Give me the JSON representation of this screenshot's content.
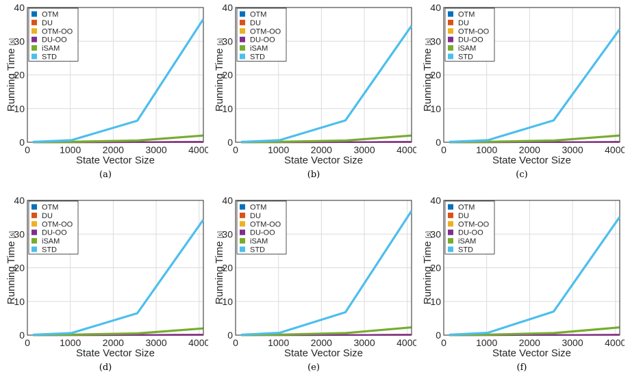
{
  "series_styles": [
    {
      "name": "OTM",
      "color": "#0072BD"
    },
    {
      "name": "DU",
      "color": "#D95319"
    },
    {
      "name": "OTM-OO",
      "color": "#EDB120"
    },
    {
      "name": "DU-OO",
      "color": "#7E2F8E"
    },
    {
      "name": "iSAM",
      "color": "#77AC30"
    },
    {
      "name": "STD",
      "color": "#4DBEEE"
    }
  ],
  "chart_data": [
    {
      "type": "line",
      "caption": "(a)",
      "xlabel": "State Vector Size",
      "ylabel": "Running Time",
      "ylabel_unit": "[s]",
      "xlim": [
        0,
        4100
      ],
      "ylim": [
        0,
        40
      ],
      "xticks": [
        0,
        1000,
        2000,
        3000,
        4000
      ],
      "yticks": [
        0,
        10,
        20,
        30,
        40
      ],
      "grid": true,
      "legend": "top-left",
      "x": [
        128,
        1024,
        2560,
        4096
      ],
      "series": [
        {
          "name": "OTM",
          "values": [
            0,
            0.02,
            0.05,
            0.1
          ]
        },
        {
          "name": "DU",
          "values": [
            0,
            0.02,
            0.05,
            0.1
          ]
        },
        {
          "name": "OTM-OO",
          "values": [
            0,
            0.02,
            0.05,
            0.1
          ]
        },
        {
          "name": "DU-OO",
          "values": [
            0,
            0.02,
            0.05,
            0.1
          ]
        },
        {
          "name": "iSAM",
          "values": [
            0.05,
            0.15,
            0.5,
            2.0
          ]
        },
        {
          "name": "STD",
          "values": [
            0.1,
            0.6,
            6.4,
            36.5
          ]
        }
      ]
    },
    {
      "type": "line",
      "caption": "(b)",
      "xlabel": "State Vector Size",
      "ylabel": "Running Time",
      "ylabel_unit": "[s]",
      "xlim": [
        0,
        4100
      ],
      "ylim": [
        0,
        40
      ],
      "xticks": [
        0,
        1000,
        2000,
        3000,
        4000
      ],
      "yticks": [
        0,
        10,
        20,
        30,
        40
      ],
      "grid": true,
      "legend": "top-left",
      "x": [
        128,
        1024,
        2560,
        4096
      ],
      "series": [
        {
          "name": "OTM",
          "values": [
            0,
            0.02,
            0.05,
            0.1
          ]
        },
        {
          "name": "DU",
          "values": [
            0,
            0.02,
            0.05,
            0.1
          ]
        },
        {
          "name": "OTM-OO",
          "values": [
            0,
            0.02,
            0.05,
            0.1
          ]
        },
        {
          "name": "DU-OO",
          "values": [
            0,
            0.02,
            0.05,
            0.1
          ]
        },
        {
          "name": "iSAM",
          "values": [
            0.05,
            0.15,
            0.5,
            2.0
          ]
        },
        {
          "name": "STD",
          "values": [
            0.1,
            0.6,
            6.5,
            34.5
          ]
        }
      ]
    },
    {
      "type": "line",
      "caption": "(c)",
      "xlabel": "State Vector Size",
      "ylabel": "Running Time",
      "ylabel_unit": "[s]",
      "xlim": [
        0,
        4100
      ],
      "ylim": [
        0,
        40
      ],
      "xticks": [
        0,
        1000,
        2000,
        3000,
        4000
      ],
      "yticks": [
        0,
        10,
        20,
        30,
        40
      ],
      "grid": true,
      "legend": "top-left",
      "x": [
        128,
        1024,
        2560,
        4096
      ],
      "series": [
        {
          "name": "OTM",
          "values": [
            0,
            0.02,
            0.05,
            0.1
          ]
        },
        {
          "name": "DU",
          "values": [
            0,
            0.02,
            0.05,
            0.1
          ]
        },
        {
          "name": "OTM-OO",
          "values": [
            0,
            0.02,
            0.05,
            0.1
          ]
        },
        {
          "name": "DU-OO",
          "values": [
            0,
            0.02,
            0.05,
            0.1
          ]
        },
        {
          "name": "iSAM",
          "values": [
            0.05,
            0.15,
            0.5,
            2.0
          ]
        },
        {
          "name": "STD",
          "values": [
            0.1,
            0.6,
            6.5,
            33.5
          ]
        }
      ]
    },
    {
      "type": "line",
      "caption": "(d)",
      "xlabel": "State Vector Size",
      "ylabel": "Running Time",
      "ylabel_unit": "[s]",
      "xlim": [
        0,
        4100
      ],
      "ylim": [
        0,
        40
      ],
      "xticks": [
        0,
        1000,
        2000,
        3000,
        4000
      ],
      "yticks": [
        0,
        10,
        20,
        30,
        40
      ],
      "grid": true,
      "legend": "top-left",
      "x": [
        128,
        1024,
        2560,
        4096
      ],
      "series": [
        {
          "name": "OTM",
          "values": [
            0,
            0.02,
            0.05,
            0.1
          ]
        },
        {
          "name": "DU",
          "values": [
            0,
            0.02,
            0.05,
            0.1
          ]
        },
        {
          "name": "OTM-OO",
          "values": [
            0,
            0.02,
            0.05,
            0.1
          ]
        },
        {
          "name": "DU-OO",
          "values": [
            0,
            0.02,
            0.05,
            0.1
          ]
        },
        {
          "name": "iSAM",
          "values": [
            0.05,
            0.15,
            0.5,
            2.0
          ]
        },
        {
          "name": "STD",
          "values": [
            0.1,
            0.6,
            6.5,
            34.2
          ]
        }
      ]
    },
    {
      "type": "line",
      "caption": "(e)",
      "xlabel": "State Vector Size",
      "ylabel": "Running Time",
      "ylabel_unit": "[s]",
      "xlim": [
        0,
        4100
      ],
      "ylim": [
        0,
        40
      ],
      "xticks": [
        0,
        1000,
        2000,
        3000,
        4000
      ],
      "yticks": [
        0,
        10,
        20,
        30,
        40
      ],
      "grid": true,
      "legend": "top-left",
      "x": [
        128,
        1024,
        2560,
        4096
      ],
      "series": [
        {
          "name": "OTM",
          "values": [
            0,
            0.02,
            0.05,
            0.1
          ]
        },
        {
          "name": "DU",
          "values": [
            0,
            0.02,
            0.05,
            0.1
          ]
        },
        {
          "name": "OTM-OO",
          "values": [
            0,
            0.02,
            0.05,
            0.1
          ]
        },
        {
          "name": "DU-OO",
          "values": [
            0,
            0.02,
            0.05,
            0.1
          ]
        },
        {
          "name": "iSAM",
          "values": [
            0.05,
            0.15,
            0.6,
            2.3
          ]
        },
        {
          "name": "STD",
          "values": [
            0.1,
            0.7,
            6.8,
            36.8
          ]
        }
      ]
    },
    {
      "type": "line",
      "caption": "(f)",
      "xlabel": "State Vector Size",
      "ylabel": "Running Time",
      "ylabel_unit": "[s]",
      "xlim": [
        0,
        4100
      ],
      "ylim": [
        0,
        40
      ],
      "xticks": [
        0,
        1000,
        2000,
        3000,
        4000
      ],
      "yticks": [
        0,
        10,
        20,
        30,
        40
      ],
      "grid": true,
      "legend": "top-left",
      "x": [
        128,
        1024,
        2560,
        4096
      ],
      "series": [
        {
          "name": "OTM",
          "values": [
            0,
            0.02,
            0.05,
            0.1
          ]
        },
        {
          "name": "DU",
          "values": [
            0,
            0.02,
            0.05,
            0.1
          ]
        },
        {
          "name": "OTM-OO",
          "values": [
            0,
            0.02,
            0.05,
            0.1
          ]
        },
        {
          "name": "DU-OO",
          "values": [
            0,
            0.02,
            0.05,
            0.1
          ]
        },
        {
          "name": "iSAM",
          "values": [
            0.05,
            0.15,
            0.6,
            2.3
          ]
        },
        {
          "name": "STD",
          "values": [
            0.1,
            0.7,
            7.0,
            35.0
          ]
        }
      ]
    }
  ]
}
